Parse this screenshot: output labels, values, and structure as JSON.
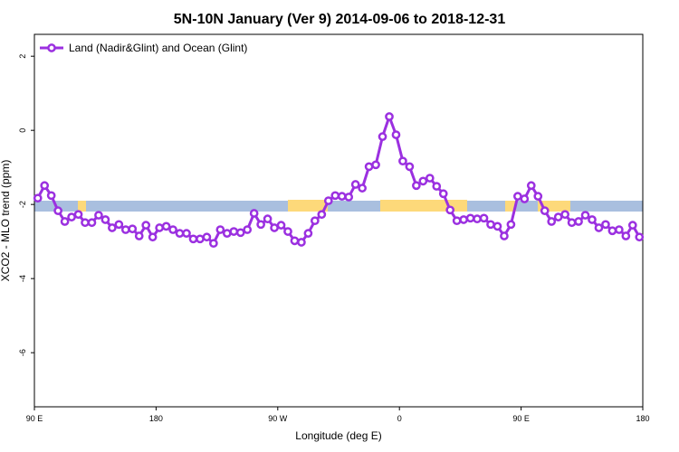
{
  "chart_data": {
    "type": "line",
    "title": "5N-10N January (Ver 9)   2014-09-06 to 2018-12-31",
    "x_label": "Longitude (deg E)",
    "y_label": "XCO2 - MLO trend (ppm)",
    "xlim": [
      90,
      540
    ],
    "ylim": [
      -7.46,
      2.59
    ],
    "xticks": [
      {
        "value": 90,
        "label": "90 E"
      },
      180,
      {
        "value": 270,
        "label": "90 W"
      },
      {
        "value": 360,
        "label": "0"
      },
      {
        "value": 450,
        "label": "90 E"
      },
      {
        "value": 540,
        "label": "180"
      }
    ],
    "yticks": [
      -6,
      -4,
      -2,
      0,
      2
    ],
    "legend_position": "top-left",
    "x": [
      92.5,
      97.5,
      102.5,
      107.5,
      112.5,
      117.5,
      122.5,
      127.5,
      132.5,
      137.5,
      142.5,
      147.5,
      152.5,
      157.5,
      162.5,
      167.5,
      172.5,
      177.5,
      182.5,
      187.5,
      192.5,
      197.5,
      202.5,
      207.5,
      212.5,
      217.5,
      222.5,
      227.5,
      232.5,
      237.5,
      242.5,
      247.5,
      252.5,
      257.5,
      262.5,
      267.5,
      272.5,
      277.5,
      282.5,
      287.5,
      292.5,
      297.5,
      302.5,
      307.5,
      312.5,
      317.5,
      322.5,
      327.5,
      332.5,
      337.5,
      342.5,
      347.5,
      352.5,
      357.5,
      362.5,
      367.5,
      372.5,
      377.5,
      382.5,
      387.5,
      392.5,
      397.5,
      402.5,
      407.5,
      412.5,
      417.5,
      422.5,
      427.5,
      432.5,
      437.5,
      442.5,
      447.5,
      452.5,
      457.5,
      462.5,
      467.5,
      472.5,
      477.5,
      482.5,
      487.5,
      492.5,
      497.5,
      502.5,
      507.5,
      512.5,
      517.5,
      522.5,
      527.5,
      532.5,
      537.5
    ],
    "series": [
      {
        "name": "Land (Nadir&Glint) and Ocean (Glint)",
        "color": "#9b30e0",
        "values": [
          -1.83,
          -1.49,
          -1.76,
          -2.17,
          -2.46,
          -2.34,
          -2.27,
          -2.49,
          -2.49,
          -2.29,
          -2.41,
          -2.63,
          -2.54,
          -2.68,
          -2.66,
          -2.85,
          -2.56,
          -2.88,
          -2.63,
          -2.59,
          -2.68,
          -2.78,
          -2.78,
          -2.93,
          -2.93,
          -2.88,
          -3.05,
          -2.68,
          -2.78,
          -2.73,
          -2.76,
          -2.68,
          -2.24,
          -2.54,
          -2.39,
          -2.63,
          -2.56,
          -2.73,
          -2.98,
          -3.02,
          -2.78,
          -2.44,
          -2.27,
          -1.9,
          -1.76,
          -1.78,
          -1.8,
          -1.46,
          -1.56,
          -0.98,
          -0.93,
          -0.17,
          0.37,
          -0.12,
          -0.83,
          -0.98,
          -1.49,
          -1.37,
          -1.29,
          -1.51,
          -1.71,
          -2.15,
          -2.44,
          -2.41,
          -2.37,
          -2.39,
          -2.37,
          -2.54,
          -2.59,
          -2.85,
          -2.54,
          -1.78,
          -1.85,
          -1.49,
          -1.78,
          -2.17,
          -2.46,
          -2.34,
          -2.27,
          -2.49,
          -2.46,
          -2.29,
          -2.41,
          -2.63,
          -2.54,
          -2.71,
          -2.68,
          -2.85,
          -2.56,
          -2.88
        ]
      }
    ]
  }
}
